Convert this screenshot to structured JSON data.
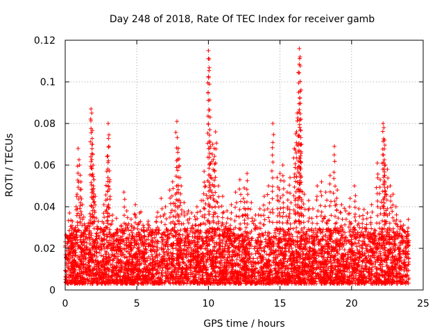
{
  "chart_data": {
    "type": "scatter",
    "title": "Day 248 of 2018, Rate Of TEC Index for receiver gamb",
    "xlabel": "GPS time / hours",
    "ylabel": "ROTI / TECUs",
    "xlim": [
      0,
      25
    ],
    "ylim": [
      0,
      0.12
    ],
    "x_ticks": [
      0,
      5,
      10,
      15,
      20,
      25
    ],
    "x_tick_labels": [
      "0",
      "5",
      "10",
      "15",
      "20",
      "25"
    ],
    "y_ticks": [
      0,
      0.02,
      0.04,
      0.06,
      0.08,
      0.1,
      0.12
    ],
    "y_tick_labels": [
      "0",
      "0.02",
      "0.04",
      "0.06",
      "0.08",
      "0.1",
      "0.12"
    ],
    "grid": true,
    "marker": "+",
    "series_color": "#ff0000",
    "series": [
      {
        "name": "ROTI",
        "description": "dense background cloud",
        "baseline_range": [
          0.003,
          0.03
        ],
        "x_range": [
          0,
          24
        ]
      }
    ],
    "points": [
      [
        0.1,
        0.012
      ],
      [
        0.2,
        0.02
      ],
      [
        0.3,
        0.037
      ],
      [
        0.4,
        0.025
      ],
      [
        0.5,
        0.033
      ],
      [
        0.6,
        0.018
      ],
      [
        0.7,
        0.03
      ],
      [
        0.8,
        0.045
      ],
      [
        0.9,
        0.068
      ],
      [
        1.0,
        0.06
      ],
      [
        1.1,
        0.052
      ],
      [
        1.2,
        0.041
      ],
      [
        1.3,
        0.035
      ],
      [
        1.4,
        0.028
      ],
      [
        1.6,
        0.031
      ],
      [
        1.8,
        0.087
      ],
      [
        1.85,
        0.085
      ],
      [
        1.9,
        0.07
      ],
      [
        1.95,
        0.06
      ],
      [
        2.0,
        0.053
      ],
      [
        2.1,
        0.045
      ],
      [
        2.3,
        0.033
      ],
      [
        2.5,
        0.029
      ],
      [
        2.7,
        0.041
      ],
      [
        2.9,
        0.057
      ],
      [
        3.0,
        0.08
      ],
      [
        3.05,
        0.069
      ],
      [
        3.1,
        0.052
      ],
      [
        3.3,
        0.036
      ],
      [
        3.6,
        0.029
      ],
      [
        3.9,
        0.031
      ],
      [
        4.1,
        0.047
      ],
      [
        4.3,
        0.038
      ],
      [
        4.6,
        0.034
      ],
      [
        4.9,
        0.041
      ],
      [
        5.2,
        0.037
      ],
      [
        5.5,
        0.03
      ],
      [
        5.8,
        0.033
      ],
      [
        6.1,
        0.028
      ],
      [
        6.4,
        0.035
      ],
      [
        6.7,
        0.044
      ],
      [
        7.0,
        0.04
      ],
      [
        7.3,
        0.048
      ],
      [
        7.5,
        0.052
      ],
      [
        7.7,
        0.046
      ],
      [
        7.8,
        0.081
      ],
      [
        7.9,
        0.068
      ],
      [
        7.95,
        0.063
      ],
      [
        8.1,
        0.05
      ],
      [
        8.3,
        0.042
      ],
      [
        8.6,
        0.038
      ],
      [
        8.9,
        0.031
      ],
      [
        9.2,
        0.04
      ],
      [
        9.5,
        0.043
      ],
      [
        9.7,
        0.057
      ],
      [
        9.8,
        0.05
      ],
      [
        10.0,
        0.115
      ],
      [
        10.05,
        0.111
      ],
      [
        10.1,
        0.077
      ],
      [
        10.3,
        0.07
      ],
      [
        10.4,
        0.068
      ],
      [
        10.5,
        0.076
      ],
      [
        10.7,
        0.05
      ],
      [
        11.0,
        0.045
      ],
      [
        11.3,
        0.038
      ],
      [
        11.6,
        0.041
      ],
      [
        11.9,
        0.047
      ],
      [
        12.2,
        0.053
      ],
      [
        12.5,
        0.049
      ],
      [
        12.7,
        0.056
      ],
      [
        13.0,
        0.042
      ],
      [
        13.3,
        0.036
      ],
      [
        13.6,
        0.039
      ],
      [
        13.9,
        0.045
      ],
      [
        14.2,
        0.05
      ],
      [
        14.5,
        0.08
      ],
      [
        14.8,
        0.054
      ],
      [
        15.0,
        0.056
      ],
      [
        15.2,
        0.06
      ],
      [
        15.5,
        0.047
      ],
      [
        15.7,
        0.054
      ],
      [
        16.0,
        0.068
      ],
      [
        16.1,
        0.075
      ],
      [
        16.2,
        0.085
      ],
      [
        16.3,
        0.095
      ],
      [
        16.35,
        0.116
      ],
      [
        16.4,
        0.112
      ],
      [
        16.45,
        0.082
      ],
      [
        16.5,
        0.07
      ],
      [
        16.7,
        0.046
      ],
      [
        17.0,
        0.043
      ],
      [
        17.3,
        0.039
      ],
      [
        17.6,
        0.05
      ],
      [
        17.9,
        0.052
      ],
      [
        18.2,
        0.047
      ],
      [
        18.5,
        0.055
      ],
      [
        18.8,
        0.069
      ],
      [
        19.0,
        0.048
      ],
      [
        19.3,
        0.041
      ],
      [
        19.6,
        0.038
      ],
      [
        19.9,
        0.044
      ],
      [
        20.2,
        0.05
      ],
      [
        20.5,
        0.039
      ],
      [
        20.8,
        0.034
      ],
      [
        21.1,
        0.037
      ],
      [
        21.4,
        0.041
      ],
      [
        21.8,
        0.061
      ],
      [
        22.0,
        0.053
      ],
      [
        22.2,
        0.08
      ],
      [
        22.25,
        0.078
      ],
      [
        22.3,
        0.072
      ],
      [
        22.35,
        0.06
      ],
      [
        22.5,
        0.058
      ],
      [
        22.7,
        0.05
      ],
      [
        22.9,
        0.046
      ],
      [
        23.1,
        0.04
      ],
      [
        23.4,
        0.033
      ],
      [
        23.7,
        0.028
      ],
      [
        23.9,
        0.021
      ]
    ]
  }
}
